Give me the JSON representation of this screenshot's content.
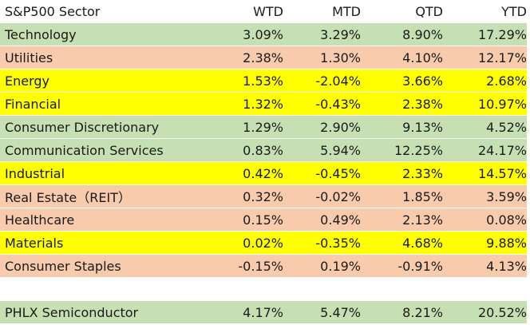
{
  "colors": {
    "green": "#c6e0b4",
    "orange": "#f8cbad",
    "yellow": "#ffff00"
  },
  "header": {
    "sector": "S&P500 Sector",
    "wtd": "WTD",
    "mtd": "MTD",
    "qtd": "QTD",
    "ytd": "YTD"
  },
  "rows": [
    {
      "sector": "Technology",
      "wtd": "3.09%",
      "mtd": "3.29%",
      "qtd": "8.90%",
      "ytd": "17.29%",
      "color": "#c6e0b4"
    },
    {
      "sector": "Utilities",
      "wtd": "2.38%",
      "mtd": "1.30%",
      "qtd": "4.10%",
      "ytd": "12.17%",
      "color": "#f8cbad"
    },
    {
      "sector": "Energy",
      "wtd": "1.53%",
      "mtd": "-2.04%",
      "qtd": "3.66%",
      "ytd": "2.68%",
      "color": "#ffff00"
    },
    {
      "sector": "Financial",
      "wtd": "1.32%",
      "mtd": "-0.43%",
      "qtd": "2.38%",
      "ytd": "10.97%",
      "color": "#ffff00"
    },
    {
      "sector": "Consumer Discretionary",
      "wtd": "1.29%",
      "mtd": "2.90%",
      "qtd": "9.13%",
      "ytd": "4.52%",
      "color": "#c6e0b4"
    },
    {
      "sector": "Communication Services",
      "wtd": "0.83%",
      "mtd": "5.94%",
      "qtd": "12.25%",
      "ytd": "24.17%",
      "color": "#c6e0b4"
    },
    {
      "sector": "Industrial",
      "wtd": "0.42%",
      "mtd": "-0.45%",
      "qtd": "2.33%",
      "ytd": "14.57%",
      "color": "#ffff00"
    },
    {
      "sector": "Real Estate（REIT）",
      "wtd": "0.32%",
      "mtd": "-0.02%",
      "qtd": "1.85%",
      "ytd": "3.59%",
      "color": "#f8cbad"
    },
    {
      "sector": "Healthcare",
      "wtd": "0.15%",
      "mtd": "0.49%",
      "qtd": "2.13%",
      "ytd": "0.08%",
      "color": "#f8cbad"
    },
    {
      "sector": "Materials",
      "wtd": "0.02%",
      "mtd": "-0.35%",
      "qtd": "4.68%",
      "ytd": "9.88%",
      "color": "#ffff00"
    },
    {
      "sector": "Consumer Staples",
      "wtd": "-0.15%",
      "mtd": "0.19%",
      "qtd": "-0.91%",
      "ytd": "4.13%",
      "color": "#f8cbad"
    }
  ],
  "semiconductor": {
    "sector": "PHLX Semiconductor",
    "wtd": "4.17%",
    "mtd": "5.47%",
    "qtd": "8.21%",
    "ytd": "20.52%",
    "color": "#c6e0b4"
  }
}
